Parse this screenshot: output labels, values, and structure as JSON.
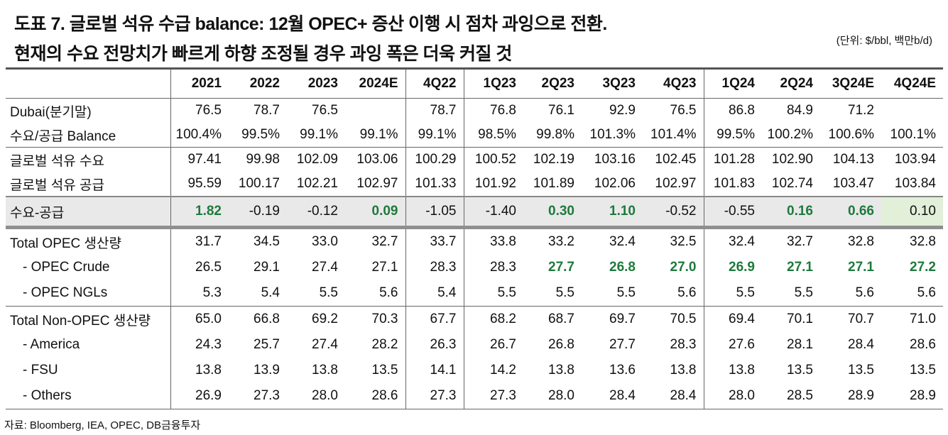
{
  "title_line1": "도표 7. 글로벌 석유 수급 balance: 12월 OPEC+ 증산 이행 시 점차 과잉으로 전환.",
  "title_line2": "현재의 수요 전망치가 빠르게 하향 조정될 경우 과잉 폭은 더욱 커질 것",
  "unit": "(단위: $/bbl, 백만b/d)",
  "source": "자료: Bloomberg, IEA, OPEC, DB금융투자",
  "colors": {
    "positive_green": "#1e7a3c",
    "highlight_cell": "#e2efd9",
    "diff_row_bg": "#e9e9e9"
  },
  "columns": [
    "2021",
    "2022",
    "2023",
    "2024E",
    "4Q22",
    "1Q23",
    "2Q23",
    "3Q23",
    "4Q23",
    "1Q24",
    "2Q24",
    "3Q24E",
    "4Q24E"
  ],
  "rows": [
    {
      "label": "Dubai(분기말)",
      "values": [
        "76.5",
        "78.7",
        "76.5",
        "",
        "78.7",
        "76.8",
        "76.1",
        "92.9",
        "76.5",
        "86.8",
        "84.9",
        "71.2",
        ""
      ]
    },
    {
      "label": "수요/공급 Balance",
      "values": [
        "100.4%",
        "99.5%",
        "99.1%",
        "99.1%",
        "99.1%",
        "98.5%",
        "99.8%",
        "101.3%",
        "101.4%",
        "99.5%",
        "100.2%",
        "100.6%",
        "100.1%"
      ]
    },
    {
      "label": "글로벌 석유 수요",
      "values": [
        "97.41",
        "99.98",
        "102.09",
        "103.06",
        "100.29",
        "100.52",
        "102.19",
        "103.16",
        "102.45",
        "101.28",
        "102.90",
        "104.13",
        "103.94"
      ]
    },
    {
      "label": "글로벌 석유 공급",
      "values": [
        "95.59",
        "100.17",
        "102.21",
        "102.97",
        "101.33",
        "101.92",
        "101.89",
        "102.06",
        "102.97",
        "101.83",
        "102.74",
        "103.47",
        "103.84"
      ]
    },
    {
      "label": "수요-공급",
      "values": [
        "1.82",
        "-0.19",
        "-0.12",
        "0.09",
        "-1.05",
        "-1.40",
        "0.30",
        "1.10",
        "-0.52",
        "-0.55",
        "0.16",
        "0.66",
        "0.10"
      ]
    },
    {
      "label": "Total OPEC 생산량",
      "values": [
        "31.7",
        "34.5",
        "33.0",
        "32.7",
        "33.7",
        "33.8",
        "33.2",
        "32.4",
        "32.5",
        "32.4",
        "32.7",
        "32.8",
        "32.8"
      ]
    },
    {
      "label": "- OPEC Crude",
      "values": [
        "26.5",
        "29.1",
        "27.4",
        "27.1",
        "28.3",
        "28.3",
        "27.7",
        "26.8",
        "27.0",
        "26.9",
        "27.1",
        "27.1",
        "27.2"
      ]
    },
    {
      "label": "- OPEC NGLs",
      "values": [
        "5.3",
        "5.4",
        "5.5",
        "5.6",
        "5.4",
        "5.5",
        "5.5",
        "5.5",
        "5.6",
        "5.5",
        "5.5",
        "5.6",
        "5.6"
      ]
    },
    {
      "label": "Total Non-OPEC 생산량",
      "values": [
        "65.0",
        "66.8",
        "69.2",
        "70.3",
        "67.7",
        "68.2",
        "68.7",
        "69.7",
        "70.5",
        "69.4",
        "70.1",
        "70.7",
        "71.0"
      ]
    },
    {
      "label": "- America",
      "values": [
        "24.3",
        "25.7",
        "27.4",
        "28.2",
        "26.3",
        "26.7",
        "26.8",
        "27.7",
        "28.3",
        "27.6",
        "28.1",
        "28.4",
        "28.6"
      ]
    },
    {
      "label": "- FSU",
      "values": [
        "13.8",
        "13.9",
        "13.8",
        "13.5",
        "14.1",
        "14.2",
        "13.8",
        "13.6",
        "13.8",
        "13.8",
        "13.5",
        "13.5",
        "13.5"
      ]
    },
    {
      "label": "- Others",
      "values": [
        "26.9",
        "27.3",
        "28.0",
        "28.6",
        "27.3",
        "27.3",
        "28.0",
        "28.4",
        "28.4",
        "28.0",
        "28.5",
        "28.9",
        "28.9"
      ]
    }
  ]
}
